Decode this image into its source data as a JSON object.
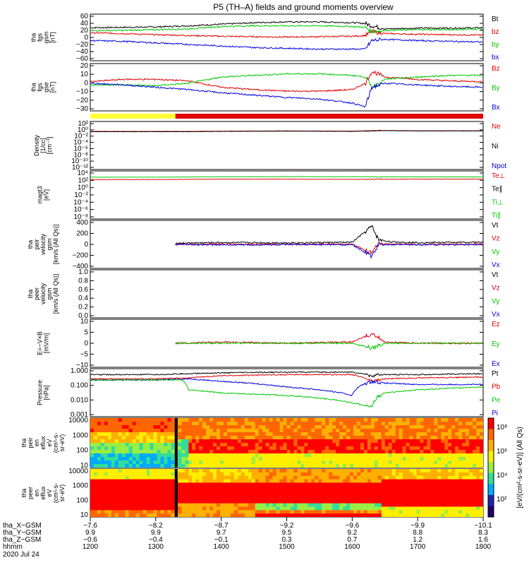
{
  "title": "P5 (TH–A) fields and ground moments overview",
  "colors": {
    "black": "#000000",
    "red": "#e00000",
    "green": "#00c800",
    "blue": "#0000e0",
    "yellow": "#ffff33"
  },
  "chart_data": [
    {
      "type": "line",
      "id": "fgs_gsm",
      "ylabel": [
        "tha",
        "fgs",
        "gsm",
        "[nT]"
      ],
      "ylim": [
        -60,
        60
      ],
      "yticks": [
        "60",
        "40",
        "20",
        "0",
        "−20",
        "−40",
        "−60"
      ],
      "legend": [
        {
          "label": "Bt",
          "color": "#000000"
        },
        {
          "label": "bz",
          "color": "#e00000"
        },
        {
          "label": "by",
          "color": "#00c800"
        },
        {
          "label": "bx",
          "color": "#0000e0"
        }
      ],
      "series": [
        {
          "name": "Bt",
          "color": "#000000",
          "x": [
            1200,
            1250,
            1300,
            1350,
            1400,
            1450,
            1500,
            1550,
            1600,
            1620,
            1630,
            1650,
            1700,
            1750,
            1800
          ],
          "y": [
            25,
            26,
            27,
            30,
            34,
            38,
            40,
            40,
            38,
            36,
            30,
            22,
            24,
            24,
            25
          ]
        },
        {
          "name": "bz",
          "color": "#e00000",
          "x": [
            1200,
            1250,
            1300,
            1350,
            1400,
            1450,
            1500,
            1550,
            1600,
            1620,
            1630,
            1650,
            1700,
            1750,
            1800
          ],
          "y": [
            12,
            10,
            7,
            5,
            3,
            2,
            1,
            2,
            3,
            5,
            15,
            10,
            8,
            7,
            6
          ]
        },
        {
          "name": "by",
          "color": "#00c800",
          "x": [
            1200,
            1250,
            1300,
            1350,
            1400,
            1450,
            1500,
            1550,
            1600,
            1620,
            1630,
            1650,
            1700,
            1750,
            1800
          ],
          "y": [
            18,
            18,
            20,
            22,
            28,
            30,
            30,
            30,
            28,
            26,
            15,
            18,
            20,
            20,
            22
          ]
        },
        {
          "name": "bx",
          "color": "#0000e0",
          "x": [
            1200,
            1250,
            1300,
            1350,
            1400,
            1450,
            1500,
            1550,
            1600,
            1620,
            1630,
            1650,
            1700,
            1750,
            1800
          ],
          "y": [
            -8,
            -10,
            -14,
            -18,
            -22,
            -26,
            -28,
            -30,
            -30,
            -30,
            -8,
            -5,
            -8,
            -10,
            -12
          ]
        }
      ]
    },
    {
      "type": "line",
      "id": "fgs_gse",
      "ylabel": [
        "tha",
        "fgs",
        "gse",
        "[nT]"
      ],
      "ylim": [
        -35,
        25
      ],
      "yticks": [
        "20",
        "10",
        "0",
        "−10",
        "−20",
        "−30"
      ],
      "legend": [
        {
          "label": "Bz",
          "color": "#e00000"
        },
        {
          "label": "By",
          "color": "#00c800"
        },
        {
          "label": "Bx",
          "color": "#0000e0"
        }
      ],
      "series": [
        {
          "name": "Bz",
          "color": "#e00000",
          "x": [
            1200,
            1250,
            1300,
            1350,
            1400,
            1450,
            1500,
            1550,
            1600,
            1620,
            1630,
            1650,
            1700,
            1750,
            1800
          ],
          "y": [
            2,
            5,
            5,
            3,
            -5,
            -8,
            -10,
            -10,
            -8,
            0,
            15,
            8,
            5,
            3,
            2
          ]
        },
        {
          "name": "By",
          "color": "#00c800",
          "x": [
            1200,
            1250,
            1300,
            1350,
            1400,
            1450,
            1500,
            1550,
            1600,
            1620,
            1630,
            1650,
            1700,
            1750,
            1800
          ],
          "y": [
            -2,
            -2,
            -3,
            0,
            8,
            10,
            12,
            12,
            10,
            8,
            -5,
            5,
            8,
            10,
            10
          ]
        },
        {
          "name": "Bx",
          "color": "#0000e0",
          "x": [
            1200,
            1250,
            1300,
            1350,
            1400,
            1450,
            1500,
            1550,
            1600,
            1620,
            1630,
            1650,
            1700,
            1750,
            1800
          ],
          "y": [
            0,
            -2,
            -5,
            -8,
            -12,
            -15,
            -18,
            -20,
            -25,
            -30,
            -5,
            0,
            -2,
            -4,
            -5
          ]
        }
      ]
    },
    {
      "type": "line",
      "id": "density",
      "log": true,
      "ylabel": [
        "Density",
        "[1/cc]",
        "[cm⁻³]"
      ],
      "yticks": [
        "10²",
        "10⁰",
        "10⁻²",
        "10⁻⁴",
        "10⁻⁶",
        "10⁻⁸",
        "10⁻¹⁰",
        "10⁻¹²"
      ],
      "ylim_exp": [
        -13,
        3
      ],
      "legend": [
        {
          "label": "Ne",
          "color": "#e00000"
        },
        {
          "label": "Ni",
          "color": "#000000"
        },
        {
          "label": "Npot",
          "color": "#0000e0"
        }
      ],
      "series": [
        {
          "name": "Ne",
          "color": "#e00000",
          "x": [
            1200,
            1300,
            1350,
            1400,
            1500,
            1600,
            1650,
            1700,
            1800
          ],
          "y": [
            0.5,
            0.5,
            0.5,
            0.6,
            0.7,
            0.6,
            1.0,
            0.8,
            0.8
          ]
        },
        {
          "name": "Ni",
          "color": "#000000",
          "x": [
            1200,
            1300,
            1350,
            1400,
            1500,
            1600,
            1650,
            1700,
            1800
          ],
          "y": [
            0.4,
            0.4,
            0.4,
            0.5,
            0.6,
            0.5,
            0.9,
            0.7,
            0.7
          ]
        }
      ]
    },
    {
      "type": "line",
      "id": "temperature",
      "log": true,
      "ylabel": [
        "magt3",
        "[eV]"
      ],
      "yticks": [
        "10⁴",
        "10²",
        "10⁰",
        "10⁻²",
        "10⁻⁴",
        "10⁻⁶",
        "10⁻⁸"
      ],
      "ylim_exp": [
        -9,
        5
      ],
      "legend": [
        {
          "label": "Te⊥",
          "color": "#e00000"
        },
        {
          "label": "Te∥",
          "color": "#000000"
        },
        {
          "label": "Ti⊥",
          "color": "#00c800"
        },
        {
          "label": "Ti∥",
          "color": "#00c800"
        }
      ],
      "series": [
        {
          "name": "Ti",
          "color": "#00c800",
          "x": [
            1200,
            1300,
            1400,
            1500,
            1600,
            1700,
            1800
          ],
          "y": [
            1500,
            1500,
            2000,
            2200,
            2000,
            1800,
            1800
          ]
        },
        {
          "name": "Te",
          "color": "#e00000",
          "x": [
            1200,
            1300,
            1400,
            1500,
            1600,
            1700,
            1800
          ],
          "y": [
            300,
            300,
            400,
            400,
            350,
            400,
            400
          ]
        }
      ]
    },
    {
      "type": "line",
      "id": "velocity_gsm",
      "ylabel": [
        "tha",
        "peir",
        "velocity",
        "gsm",
        "[km/s (All Qs)]"
      ],
      "ylim": [
        -400,
        400
      ],
      "yticks": [
        "400",
        "200",
        "0",
        "−200",
        "−400"
      ],
      "legend": [
        {
          "label": "Vt",
          "color": "#000000"
        },
        {
          "label": "Vz",
          "color": "#e00000"
        },
        {
          "label": "Vy",
          "color": "#00c800"
        },
        {
          "label": "Vx",
          "color": "#0000e0"
        }
      ],
      "series": [
        {
          "name": "Vt",
          "color": "#000000",
          "x": [
            1330,
            1400,
            1500,
            1600,
            1630,
            1640,
            1660,
            1700,
            1800
          ],
          "y": [
            20,
            30,
            25,
            35,
            300,
            80,
            40,
            30,
            35
          ]
        },
        {
          "name": "Vz",
          "color": "#e00000",
          "x": [
            1330,
            1400,
            1500,
            1600,
            1630,
            1640,
            1660,
            1700,
            1800
          ],
          "y": [
            0,
            5,
            0,
            5,
            -150,
            10,
            5,
            0,
            5
          ]
        },
        {
          "name": "Vx",
          "color": "#0000e0",
          "x": [
            1330,
            1400,
            1500,
            1600,
            1630,
            1640,
            1660,
            1700,
            1800
          ],
          "y": [
            0,
            -10,
            -5,
            -5,
            -200,
            -10,
            -5,
            -5,
            -5
          ]
        }
      ]
    },
    {
      "type": "line",
      "id": "velocity_gse_empty",
      "ylabel": [
        "tha",
        "peer",
        "velocity",
        "gsm",
        "[km/s (All Qs)]"
      ],
      "ylim": [
        0,
        1
      ],
      "yticks": [
        "1.0",
        "0.8",
        "0.6",
        "0.4",
        "0.2",
        "0.0"
      ],
      "legend": [
        {
          "label": "Vt",
          "color": "#000000"
        },
        {
          "label": "Vz",
          "color": "#e00000"
        },
        {
          "label": "Vy",
          "color": "#00c800"
        },
        {
          "label": "Vx",
          "color": "#0000e0"
        }
      ],
      "series": []
    },
    {
      "type": "line",
      "id": "efield",
      "ylabel": [
        "E=−V×B",
        "[mV/m]"
      ],
      "ylim": [
        -10,
        10
      ],
      "yticks": [
        "10",
        "5",
        "0",
        "−5",
        "−10"
      ],
      "legend": [
        {
          "label": "Ez",
          "color": "#e00000"
        },
        {
          "label": "Ey",
          "color": "#00c800"
        },
        {
          "label": "Ex",
          "color": "#0000e0"
        }
      ],
      "series": [
        {
          "name": "Ez",
          "color": "#e00000",
          "x": [
            1330,
            1400,
            1500,
            1600,
            1630,
            1650,
            1700,
            1800
          ],
          "y": [
            0,
            0.5,
            0,
            0.5,
            4,
            0.5,
            0,
            0
          ]
        },
        {
          "name": "Ey",
          "color": "#00c800",
          "x": [
            1330,
            1400,
            1500,
            1600,
            1630,
            1650,
            1700,
            1800
          ],
          "y": [
            0,
            0,
            0,
            0,
            -2,
            0,
            0,
            0
          ]
        }
      ]
    },
    {
      "type": "line",
      "id": "pressure",
      "log": true,
      "ylabel": [
        "Pressure",
        "[nPa]"
      ],
      "yticks": [
        "1.000",
        "0.100",
        "0.010",
        "0.001"
      ],
      "ylim_exp": [
        -3.2,
        0.2
      ],
      "legend": [
        {
          "label": "Pt",
          "color": "#000000"
        },
        {
          "label": "Pb",
          "color": "#e00000"
        },
        {
          "label": "Pe",
          "color": "#00c800"
        },
        {
          "label": "Pi",
          "color": "#0000e0"
        }
      ],
      "series": [
        {
          "name": "Pt",
          "color": "#000000",
          "x": [
            1200,
            1300,
            1350,
            1400,
            1500,
            1600,
            1630,
            1650,
            1700,
            1800
          ],
          "y": [
            0.6,
            0.6,
            0.7,
            0.8,
            0.9,
            0.9,
            0.5,
            0.6,
            0.6,
            0.7
          ]
        },
        {
          "name": "Pb",
          "color": "#e00000",
          "x": [
            1200,
            1300,
            1350,
            1400,
            1500,
            1600,
            1630,
            1650,
            1700,
            1800
          ],
          "y": [
            0.3,
            0.3,
            0.35,
            0.5,
            0.6,
            0.6,
            0.2,
            0.3,
            0.35,
            0.4
          ]
        },
        {
          "name": "Pi",
          "color": "#0000e0",
          "x": [
            1200,
            1300,
            1350,
            1400,
            1500,
            1600,
            1630,
            1650,
            1700,
            1800
          ],
          "y": [
            0.25,
            0.25,
            0.3,
            0.2,
            0.08,
            0.02,
            0.2,
            0.15,
            0.12,
            0.12
          ]
        },
        {
          "name": "Pe",
          "color": "#00c800",
          "x": [
            1200,
            1300,
            1340,
            1350,
            1400,
            1500,
            1600,
            1630,
            1650,
            1700,
            1800
          ],
          "y": [
            0.25,
            0.25,
            0.25,
            0.05,
            0.03,
            0.02,
            0.006,
            0.003,
            0.03,
            0.05,
            0.08
          ]
        }
      ]
    },
    {
      "type": "heatmap",
      "id": "peir_spec",
      "ylabel": [
        "tha",
        "peir",
        "en",
        "eflux",
        "eV",
        "(cm²-s-",
        "sr-eV)"
      ],
      "yticks": [
        "10000",
        "1000",
        "100",
        "10"
      ]
    },
    {
      "type": "heatmap",
      "id": "peer_spec",
      "ylabel": [
        "tha",
        "peer",
        "en",
        "eflux",
        "eV",
        "(cm²-s-",
        "sr-eV)"
      ],
      "yticks": [
        "10000",
        "1000",
        "100",
        "10"
      ]
    }
  ],
  "colorbar": {
    "label": "[eV/(cm²-s-sr-eV)] (All Qs)",
    "ticks": [
      "10⁸",
      "10⁶",
      "10⁴",
      "10²"
    ]
  },
  "xaxis": {
    "values": [
      1200,
      1300,
      1400,
      1500,
      1600,
      1700,
      1800
    ],
    "rows": [
      {
        "label": "tha_X−GSM",
        "values": [
          "−7.6",
          "−8.2",
          "−8.7",
          "−9.2",
          "−9.6",
          "−9.9",
          "−10.1"
        ]
      },
      {
        "label": "tha_Y−GSM",
        "values": [
          "9.9",
          "9.9",
          "9.7",
          "9.5",
          "9.2",
          "8.8",
          "8.3"
        ]
      },
      {
        "label": "tha_Z−GSM",
        "values": [
          "−0.6",
          "−0.4",
          "−0.1",
          "0.3",
          "0.7",
          "1.2",
          "1.6"
        ]
      },
      {
        "label": "hhmm",
        "values": [
          "1200",
          "1300",
          "1400",
          "1500",
          "1600",
          "1700",
          "1800"
        ]
      }
    ],
    "date": "2020 Jul 24"
  }
}
